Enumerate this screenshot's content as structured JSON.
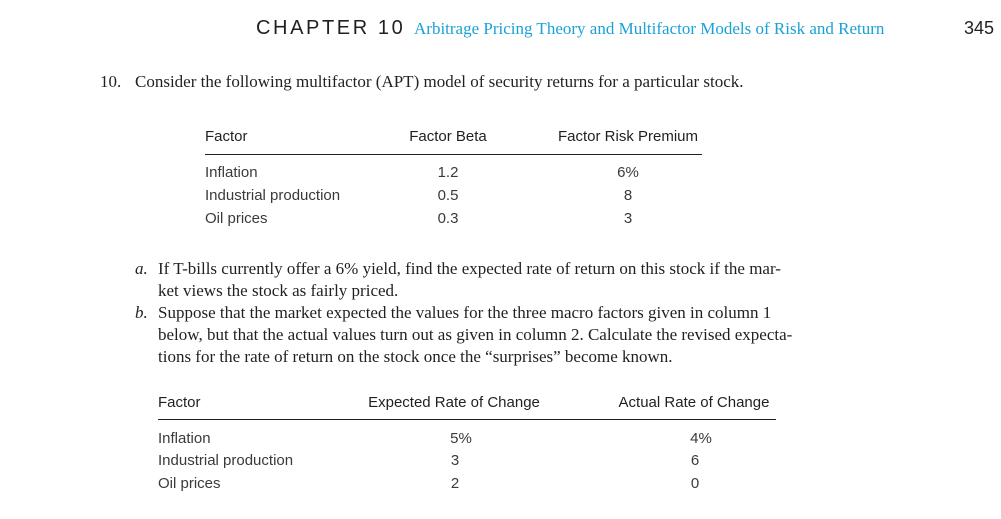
{
  "header": {
    "chapter": "CHAPTER 10",
    "title": "Arbitrage Pricing Theory and Multifactor Models of Risk and Return",
    "page_number": "345"
  },
  "problem": {
    "number": "10.",
    "text": "Consider the following multifactor (APT) model of security returns for a particular stock."
  },
  "table1": {
    "headers": [
      "Factor",
      "Factor Beta",
      "Factor Risk Premium"
    ],
    "rows": [
      [
        "Inflation",
        "1.2",
        "6%"
      ],
      [
        "Industrial production",
        "0.5",
        "8"
      ],
      [
        "Oil prices",
        "0.3",
        "3"
      ]
    ]
  },
  "parts": [
    {
      "letter": "a.",
      "lines": [
        "If T-bills currently offer a 6% yield, find the expected rate of return on this stock if the mar-",
        "ket views the stock as fairly priced."
      ]
    },
    {
      "letter": "b.",
      "lines": [
        "Suppose that the market expected the values for the three macro factors given in column 1",
        "below, but that the actual values turn out as given in column 2. Calculate the revised expecta-",
        "tions for the rate of return on the stock once the “surprises” become known."
      ]
    }
  ],
  "table2": {
    "headers": [
      "Factor",
      "Expected Rate of Change",
      "Actual Rate of Change"
    ],
    "rows": [
      [
        "Inflation",
        "5%",
        "4%"
      ],
      [
        "Industrial production",
        "3",
        "6"
      ],
      [
        "Oil prices",
        "2",
        "0"
      ]
    ]
  }
}
